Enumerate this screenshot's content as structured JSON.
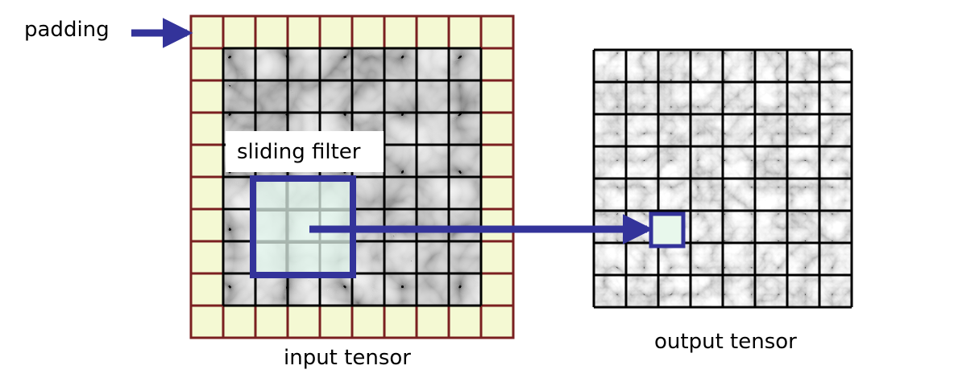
{
  "labels": {
    "padding": "padding",
    "sliding_filter": "sliding filter",
    "input_tensor": "input tensor",
    "output_tensor": "output tensor"
  },
  "input_grid": {
    "rows": 10,
    "cols": 10,
    "padding_cells": 1
  },
  "output_grid": {
    "rows": 8,
    "cols": 8
  },
  "filter": {
    "size": 3
  },
  "colors": {
    "padding_cell": "#f4f9d3",
    "padding_border": "#7a2020",
    "grid_line": "#000000",
    "arrow": "#33339a",
    "filter_fill": "#e2f6ec",
    "label_background": "#ffffff"
  }
}
